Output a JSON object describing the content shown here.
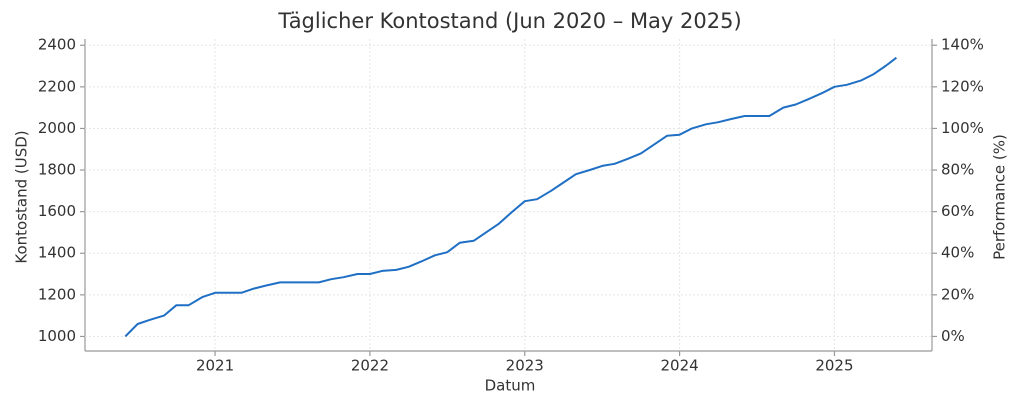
{
  "chart_data": {
    "type": "line",
    "title": "Täglicher Kontostand (Jun 2020 – May 2025)",
    "x_label": "Datum",
    "y_label": "Kontostand (USD)",
    "y2_label": "Performance (%)",
    "color": "#1f6fc5",
    "grid": true,
    "x": [
      2020.42,
      2020.5,
      2020.58,
      2020.67,
      2020.75,
      2020.83,
      2020.92,
      2021.0,
      2021.17,
      2021.25,
      2021.33,
      2021.42,
      2021.67,
      2021.75,
      2021.83,
      2021.92,
      2022.0,
      2022.08,
      2022.17,
      2022.25,
      2022.33,
      2022.42,
      2022.5,
      2022.58,
      2022.67,
      2022.75,
      2022.83,
      2022.92,
      2023.0,
      2023.08,
      2023.17,
      2023.25,
      2023.33,
      2023.42,
      2023.5,
      2023.58,
      2023.67,
      2023.75,
      2023.83,
      2023.92,
      2024.0,
      2024.08,
      2024.17,
      2024.25,
      2024.33,
      2024.42,
      2024.58,
      2024.67,
      2024.75,
      2024.83,
      2024.92,
      2025.0,
      2025.08,
      2025.17,
      2025.25,
      2025.33,
      2025.4
    ],
    "values": [
      1000,
      1060,
      1080,
      1100,
      1150,
      1150,
      1190,
      1210,
      1210,
      1230,
      1245,
      1260,
      1260,
      1275,
      1285,
      1300,
      1300,
      1315,
      1320,
      1335,
      1360,
      1390,
      1405,
      1450,
      1460,
      1500,
      1540,
      1600,
      1650,
      1660,
      1700,
      1740,
      1780,
      1800,
      1820,
      1830,
      1855,
      1880,
      1920,
      1965,
      1970,
      2000,
      2020,
      2030,
      2045,
      2060,
      2060,
      2100,
      2115,
      2140,
      2170,
      2200,
      2210,
      2230,
      2260,
      2300,
      2340
    ],
    "xlim": [
      2020.16,
      2025.63
    ],
    "xticks": [
      2021,
      2022,
      2023,
      2024,
      2025
    ],
    "ylim": [
      930,
      2430
    ],
    "yticks": [
      1000,
      1200,
      1400,
      1600,
      1800,
      2000,
      2200,
      2400
    ],
    "y2lim": [
      -7,
      143
    ],
    "y2ticks": [
      {
        "value": 0,
        "label": "0%"
      },
      {
        "value": 20,
        "label": "20%"
      },
      {
        "value": 40,
        "label": "40%"
      },
      {
        "value": 60,
        "label": "60%"
      },
      {
        "value": 80,
        "label": "80%"
      },
      {
        "value": 100,
        "label": "100%"
      },
      {
        "value": 120,
        "label": "120%"
      },
      {
        "value": 140,
        "label": "140%"
      }
    ]
  }
}
